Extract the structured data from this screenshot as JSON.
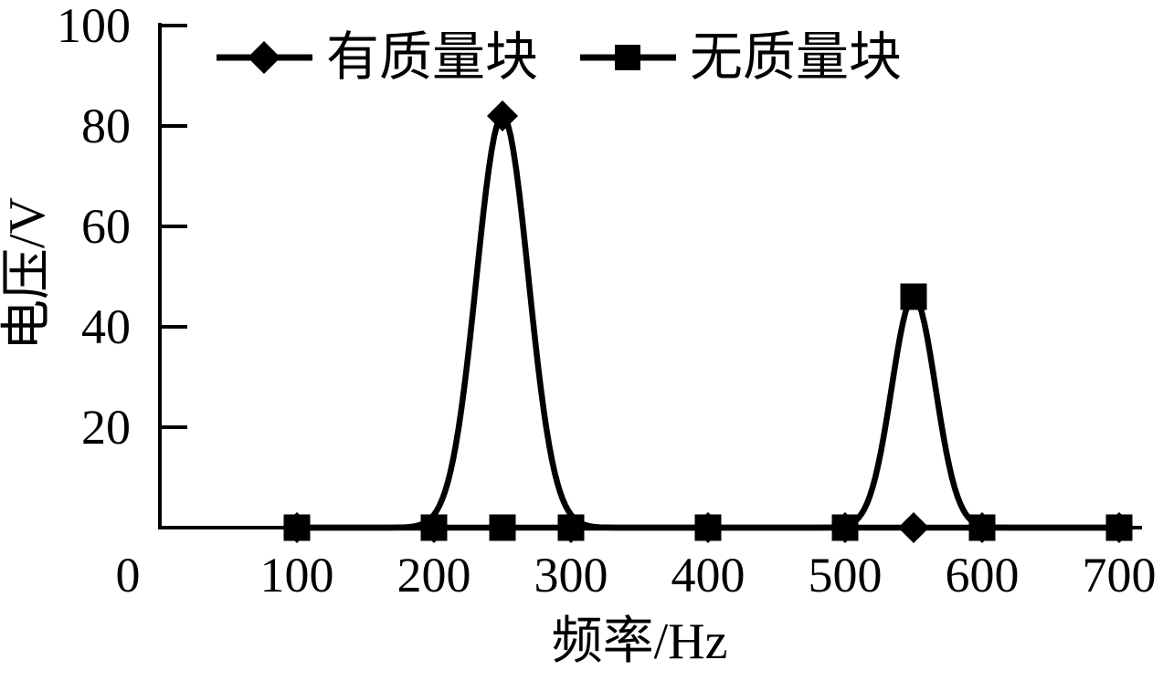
{
  "figure": {
    "background_color": "#ffffff",
    "ink_color": "#000000"
  },
  "chart_data": {
    "type": "line",
    "title": "",
    "xlabel": "频率/Hz",
    "ylabel": "电压/V",
    "xlim": [
      0,
      700
    ],
    "ylim": [
      0,
      100
    ],
    "x_ticks": [
      0,
      100,
      200,
      300,
      400,
      500,
      600,
      700
    ],
    "y_ticks": [
      20,
      40,
      60,
      80,
      100
    ],
    "grid": false,
    "frame": "L-shape (left and bottom axes only)",
    "legend_position": "top-center",
    "series": [
      {
        "name": "有质量块",
        "marker": "diamond",
        "color": "#000000",
        "points": [
          [
            100,
            0
          ],
          [
            200,
            0
          ],
          [
            250,
            82
          ],
          [
            300,
            0
          ],
          [
            400,
            0
          ],
          [
            500,
            0
          ],
          [
            550,
            0
          ],
          [
            600,
            0
          ],
          [
            700,
            0
          ]
        ],
        "peak": {
          "x": 250,
          "y": 82,
          "sigma_hz": 19
        }
      },
      {
        "name": "无质量块",
        "marker": "square",
        "color": "#000000",
        "points": [
          [
            100,
            0
          ],
          [
            200,
            0
          ],
          [
            250,
            0
          ],
          [
            300,
            0
          ],
          [
            400,
            0
          ],
          [
            500,
            0
          ],
          [
            550,
            46
          ],
          [
            600,
            0
          ],
          [
            700,
            0
          ]
        ],
        "peak": {
          "x": 550,
          "y": 46,
          "sigma_hz": 16
        }
      }
    ]
  }
}
